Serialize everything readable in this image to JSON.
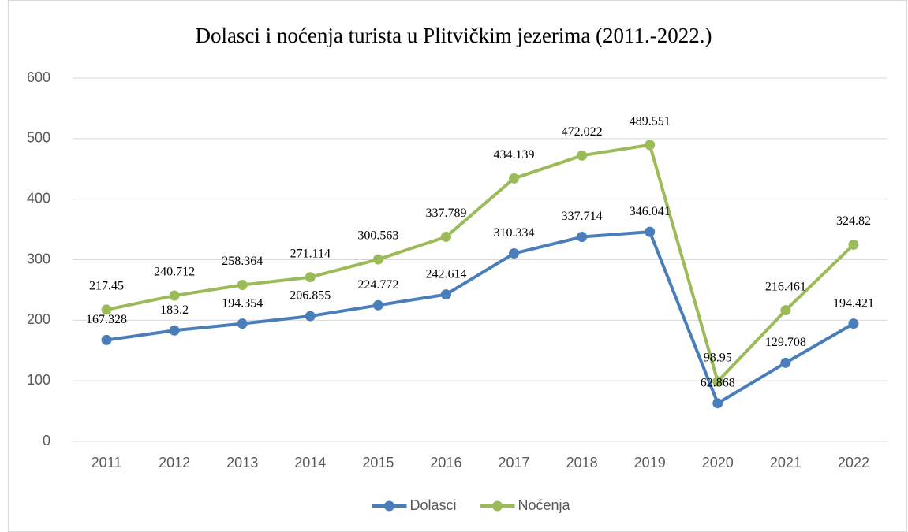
{
  "chart_data": {
    "type": "line",
    "title": "Dolasci i noćenja turista u Plitvičkim jezerima (2011.-2022.)",
    "categories": [
      "2011",
      "2012",
      "2013",
      "2014",
      "2015",
      "2016",
      "2017",
      "2018",
      "2019",
      "2020",
      "2021",
      "2022"
    ],
    "series": [
      {
        "name": "Dolasci",
        "color": "#4a7ebb",
        "values": [
          167.328,
          183.2,
          194.354,
          206.855,
          224.772,
          242.614,
          310.334,
          337.714,
          346.041,
          62.868,
          129.708,
          194.421
        ]
      },
      {
        "name": "Noćenja",
        "color": "#9bbb59",
        "values": [
          217.45,
          240.712,
          258.364,
          271.114,
          300.563,
          337.789,
          434.139,
          472.022,
          489.551,
          98.95,
          216.461,
          324.82
        ]
      }
    ],
    "ylim": [
      0,
      600
    ],
    "yticks": [
      0,
      100,
      200,
      300,
      400,
      500,
      600
    ],
    "grid": true,
    "legend": "bottom"
  }
}
